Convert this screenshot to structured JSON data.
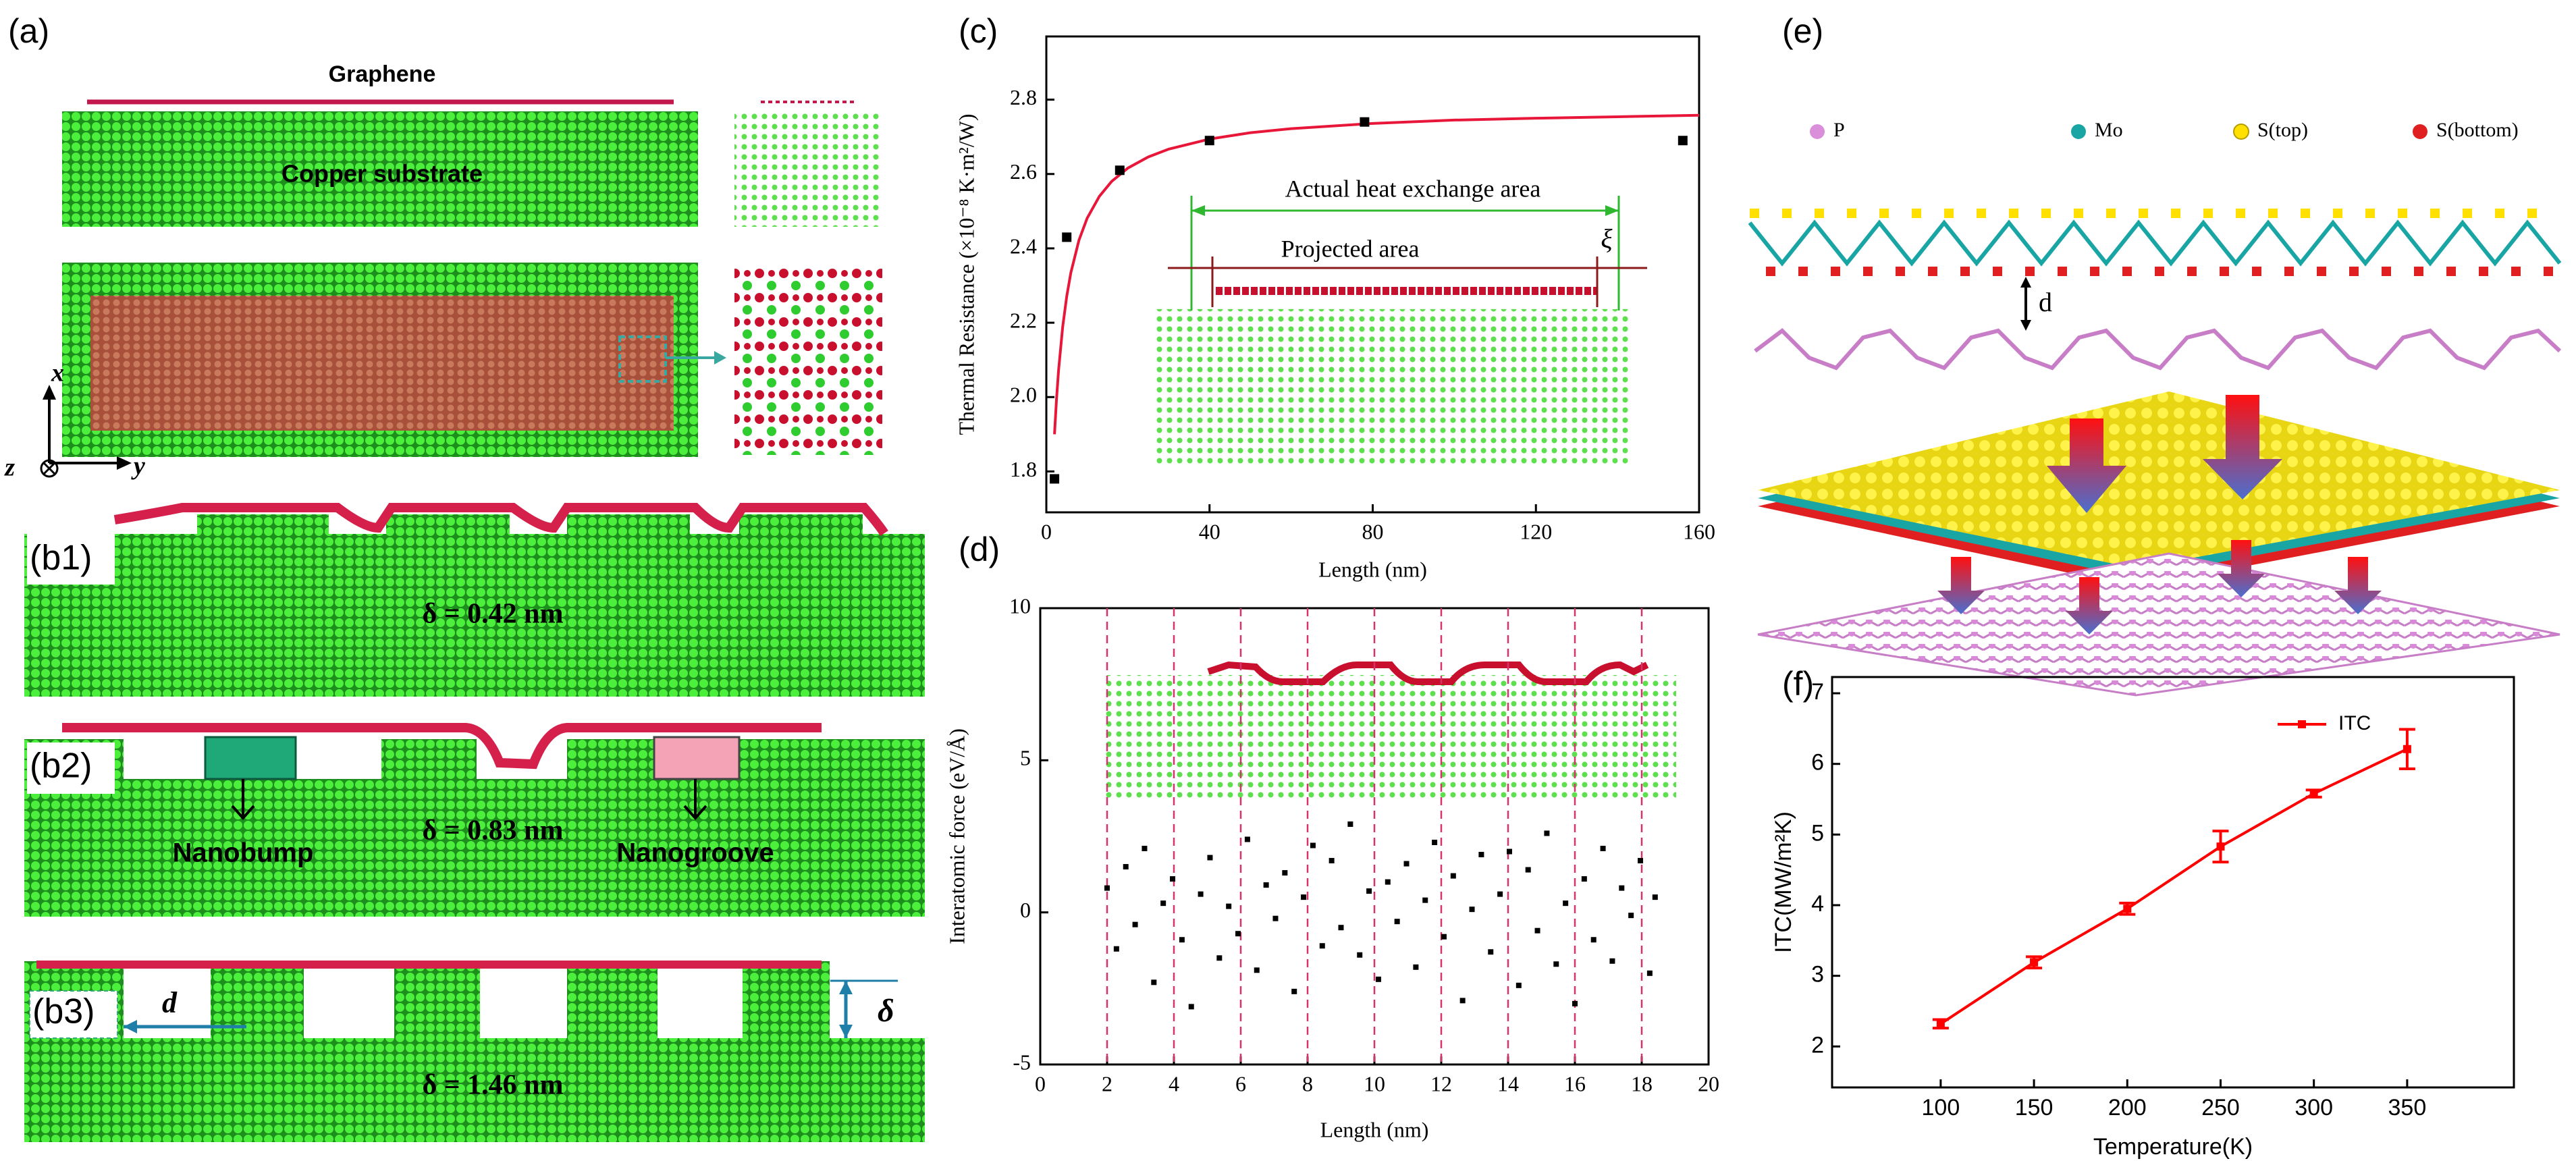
{
  "panel_labels": [
    "(a)",
    "(c)",
    "(d)",
    "(e)",
    "(f)"
  ],
  "panel_a": {
    "graphene": "Graphene",
    "substrate": "Copper substrate",
    "axis_x": "x",
    "axis_y": "y",
    "axis_z": "z"
  },
  "panel_b": [
    {
      "label": "(b1)",
      "delta": "δ = 0.42 nm"
    },
    {
      "label": "(b2)",
      "delta": "δ = 0.83 nm",
      "bump": "Nanobump",
      "groove": "Nanogroove"
    },
    {
      "label": "(b3)",
      "delta": "δ = 1.46 nm",
      "d": "d",
      "delta_symbol": "δ"
    }
  ],
  "panel_e": {
    "legend": [
      "P",
      "Mo",
      "S(top)",
      "S(bottom)"
    ],
    "spacing": "d"
  },
  "chart_data": [
    {
      "type": "scatter",
      "xlabel": "Length (nm)",
      "ylabel": "Thermal Resistance (×10⁻⁸ K·m²/W)",
      "xlim": [
        0,
        160
      ],
      "xticks": [
        0,
        40,
        80,
        120,
        160
      ],
      "ylim": [
        1.69,
        2.97
      ],
      "yticks": [
        {
          "value": 1.8,
          "label": "1.8"
        },
        {
          "value": 2,
          "label": "2.0"
        },
        {
          "value": 2.2,
          "label": "2.2"
        },
        {
          "value": 2.4,
          "label": "2.4"
        },
        {
          "value": 2.6,
          "label": "2.6"
        },
        {
          "value": 2.8,
          "label": "2.8"
        }
      ],
      "points": {
        "color": "#000000",
        "x": [
          2,
          5,
          18,
          40,
          78,
          156
        ],
        "values": [
          1.78,
          2.43,
          2.61,
          2.69,
          2.74,
          2.69
        ]
      },
      "fit": {
        "color": "#e8173a",
        "x": [
          2,
          2.5,
          3,
          4,
          5,
          6,
          8,
          10,
          13,
          16,
          20,
          25,
          30,
          40,
          50,
          60,
          80,
          100,
          120,
          140,
          160
        ],
        "values": [
          1.9,
          1.995,
          2.072,
          2.188,
          2.271,
          2.334,
          2.422,
          2.481,
          2.54,
          2.58,
          2.616,
          2.646,
          2.667,
          2.694,
          2.711,
          2.722,
          2.736,
          2.745,
          2.75,
          2.754,
          2.758
        ]
      },
      "annotations": {
        "actual": "Actual heat exchange area",
        "projected": "Projected area",
        "xi": "ξ"
      }
    },
    {
      "type": "scatter",
      "xlabel": "Length (nm)",
      "ylabel": "Interatomic force (eV/Å)",
      "xlim": [
        0,
        20
      ],
      "xticks": [
        0,
        2,
        4,
        6,
        8,
        10,
        12,
        14,
        16,
        18,
        20
      ],
      "ylim": [
        -5,
        10
      ],
      "yticks": [
        -5,
        0,
        5,
        10
      ],
      "dashed_x": [
        2,
        4,
        6,
        8,
        10,
        12,
        14,
        16,
        18
      ],
      "dashed_color": "#d6336c",
      "points": {
        "color": "#000000",
        "x": [
          2.0,
          2.28,
          2.56,
          2.84,
          3.12,
          3.4,
          3.68,
          3.96,
          4.24,
          4.52,
          4.8,
          5.08,
          5.36,
          5.64,
          5.92,
          6.2,
          6.48,
          6.76,
          7.04,
          7.32,
          7.6,
          7.88,
          8.16,
          8.44,
          8.72,
          9.0,
          9.28,
          9.56,
          9.84,
          10.12,
          10.4,
          10.68,
          10.96,
          11.24,
          11.52,
          11.8,
          12.08,
          12.36,
          12.64,
          12.92,
          13.2,
          13.48,
          13.76,
          14.04,
          14.32,
          14.6,
          14.88,
          15.16,
          15.44,
          15.72,
          16.0,
          16.28,
          16.56,
          16.84,
          17.12,
          17.4,
          17.68,
          17.96,
          18.24,
          18.4
        ],
        "values": [
          0.8,
          -1.2,
          1.5,
          -0.4,
          2.1,
          -2.3,
          0.3,
          1.1,
          -0.9,
          -3.1,
          0.6,
          1.8,
          -1.5,
          0.2,
          -0.7,
          2.4,
          -1.9,
          0.9,
          -0.2,
          1.3,
          -2.6,
          0.5,
          2.2,
          -1.1,
          1.7,
          -0.5,
          2.9,
          -1.4,
          0.7,
          -2.2,
          1.0,
          -0.3,
          1.6,
          -1.8,
          0.4,
          2.3,
          -0.8,
          1.2,
          -2.9,
          0.1,
          1.9,
          -1.3,
          0.6,
          2.0,
          -2.4,
          1.4,
          -0.6,
          2.6,
          -1.7,
          0.3,
          -3.0,
          1.1,
          -0.9,
          2.1,
          -1.6,
          0.8,
          -0.1,
          1.7,
          -2.0,
          0.5
        ]
      }
    },
    {
      "type": "line",
      "xlabel": "Temperature(K)",
      "ylabel": "ITC(MW/m²K)",
      "xlim": [
        41.8,
        407.2
      ],
      "xticks": [
        100,
        150,
        200,
        250,
        300,
        350
      ],
      "ylim": [
        1.42,
        7.23
      ],
      "yticks": [
        2,
        3,
        4,
        5,
        6,
        7
      ],
      "x": [
        100,
        150,
        200,
        250,
        300,
        350
      ],
      "series": [
        {
          "name": "ITC",
          "color": "#ff0000",
          "values": [
            2.32,
            3.19,
            3.95,
            4.83,
            5.58,
            6.21
          ],
          "errors": [
            0.06,
            0.08,
            0.08,
            0.22,
            0.05,
            0.28
          ]
        }
      ],
      "legend": "upper right"
    }
  ]
}
